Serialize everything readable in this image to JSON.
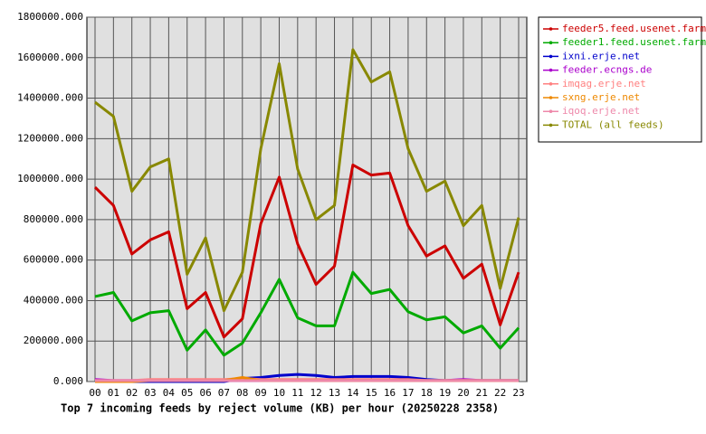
{
  "chart_data": {
    "type": "line",
    "title": "Top 7 incoming feeds by reject volume (KB) per hour (20250228 2358)",
    "categories": [
      "00",
      "01",
      "02",
      "03",
      "04",
      "05",
      "06",
      "07",
      "08",
      "09",
      "10",
      "11",
      "12",
      "13",
      "14",
      "15",
      "16",
      "17",
      "18",
      "19",
      "20",
      "21",
      "22",
      "23"
    ],
    "ylim": [
      0,
      1800000
    ],
    "yticks": [
      {
        "value": 0,
        "label": "0.000"
      },
      {
        "value": 200000,
        "label": "200000.000"
      },
      {
        "value": 400000,
        "label": "400000.000"
      },
      {
        "value": 600000,
        "label": "600000.000"
      },
      {
        "value": 800000,
        "label": "800000.000"
      },
      {
        "value": 1000000,
        "label": "1000000.000"
      },
      {
        "value": 1200000,
        "label": "1200000.000"
      },
      {
        "value": 1400000,
        "label": "1400000.000"
      },
      {
        "value": 1600000,
        "label": "1600000.000"
      },
      {
        "value": 1800000,
        "label": "1800000.000"
      }
    ],
    "grid": true,
    "legend": "outside-right",
    "series": [
      {
        "name": "feeder5.feed.usenet.farm",
        "color": "#cc0000",
        "values": [
          960000,
          870000,
          630000,
          700000,
          740000,
          360000,
          440000,
          220000,
          310000,
          780000,
          1010000,
          680000,
          480000,
          570000,
          1070000,
          1020000,
          1030000,
          770000,
          620000,
          670000,
          510000,
          580000,
          280000,
          540000
        ]
      },
      {
        "name": "feeder1.feed.usenet.farm",
        "color": "#00aa00",
        "values": [
          420000,
          440000,
          300000,
          340000,
          350000,
          155000,
          255000,
          130000,
          190000,
          340000,
          505000,
          315000,
          275000,
          275000,
          540000,
          435000,
          455000,
          345000,
          305000,
          320000,
          240000,
          275000,
          165000,
          265000
        ]
      },
      {
        "name": "ixni.erje.net",
        "color": "#0000cc",
        "values": [
          0,
          0,
          0,
          0,
          0,
          0,
          0,
          0,
          15000,
          20000,
          30000,
          35000,
          30000,
          20000,
          25000,
          25000,
          25000,
          20000,
          10000,
          5000,
          5000,
          5000,
          5000,
          5000
        ]
      },
      {
        "name": "feeder.ecngs.de",
        "color": "#aa00cc",
        "values": [
          10000,
          5000,
          5000,
          5000,
          5000,
          5000,
          5000,
          5000,
          5000,
          5000,
          5000,
          5000,
          5000,
          5000,
          5000,
          5000,
          5000,
          5000,
          5000,
          5000,
          10000,
          5000,
          5000,
          5000
        ]
      },
      {
        "name": "imqag.erje.net",
        "color": "#ff8080",
        "values": [
          5000,
          5000,
          5000,
          10000,
          10000,
          10000,
          10000,
          10000,
          15000,
          10000,
          10000,
          10000,
          10000,
          10000,
          10000,
          10000,
          10000,
          10000,
          5000,
          5000,
          5000,
          5000,
          5000,
          5000
        ]
      },
      {
        "name": "sxng.erje.net",
        "color": "#ee8800",
        "values": [
          0,
          0,
          0,
          5000,
          5000,
          5000,
          5000,
          5000,
          20000,
          5000,
          5000,
          5000,
          5000,
          5000,
          5000,
          5000,
          5000,
          5000,
          5000,
          5000,
          5000,
          5000,
          5000,
          5000
        ]
      },
      {
        "name": "iqoq.erje.net",
        "color": "#ee88aa",
        "values": [
          5000,
          5000,
          5000,
          5000,
          5000,
          5000,
          5000,
          5000,
          5000,
          5000,
          5000,
          5000,
          5000,
          5000,
          5000,
          5000,
          5000,
          5000,
          5000,
          5000,
          5000,
          5000,
          5000,
          5000
        ]
      },
      {
        "name": "TOTAL (all feeds)",
        "color": "#888800",
        "values": [
          1380000,
          1310000,
          940000,
          1060000,
          1100000,
          530000,
          710000,
          350000,
          540000,
          1150000,
          1570000,
          1050000,
          800000,
          870000,
          1640000,
          1480000,
          1530000,
          1150000,
          940000,
          990000,
          770000,
          870000,
          460000,
          810000
        ]
      }
    ]
  }
}
